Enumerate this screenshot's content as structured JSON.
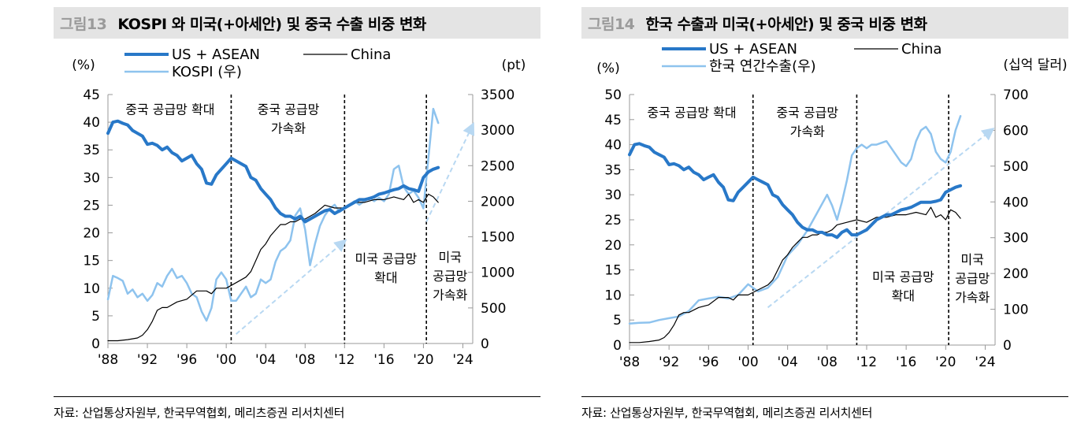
{
  "chart_data": [
    {
      "type": "line",
      "figure_number": "그림13",
      "title": "KOSPI 와 미국(+아세안) 및 중국 수출 비중 변화",
      "left_axis_label": "(%)",
      "right_axis_label": "(pt)",
      "x_ticks": [
        "'88",
        "'92",
        "'96",
        "'00",
        "'04",
        "'08",
        "'12",
        "'16",
        "'20",
        "'24"
      ],
      "xlim": [
        1988,
        2025
      ],
      "ylim_left": [
        0,
        45
      ],
      "ylim_right": [
        0,
        3500
      ],
      "y_ticks_left": [
        0,
        5,
        10,
        15,
        20,
        25,
        30,
        35,
        40,
        45
      ],
      "y_ticks_right": [
        0,
        500,
        1000,
        1500,
        2000,
        2500,
        3000,
        3500
      ],
      "series": [
        {
          "name": "US + ASEAN",
          "axis": "left",
          "color": "#2878c8",
          "width": 4,
          "x": [
            1988,
            1988.5,
            1989,
            1989.5,
            1990,
            1990.5,
            1991,
            1991.5,
            1992,
            1992.5,
            1993,
            1993.5,
            1994,
            1994.5,
            1995,
            1995.5,
            1996,
            1996.5,
            1997,
            1997.5,
            1998,
            1998.5,
            1999,
            1999.5,
            2000,
            2000.5,
            2001,
            2001.5,
            2002,
            2002.5,
            2003,
            2003.5,
            2004,
            2004.5,
            2005,
            2005.5,
            2006,
            2006.5,
            2007,
            2007.5,
            2008,
            2008.5,
            2009,
            2009.5,
            2010,
            2010.5,
            2011,
            2011.5,
            2012,
            2012.5,
            2013,
            2013.5,
            2014,
            2014.5,
            2015,
            2015.5,
            2016,
            2016.5,
            2017,
            2017.5,
            2018,
            2018.5,
            2019,
            2019.5,
            2020,
            2020.5,
            2021,
            2021.5
          ],
          "y": [
            38,
            40,
            40.2,
            39.8,
            39.5,
            38.5,
            38,
            37.5,
            36,
            36.2,
            35.8,
            35,
            35.5,
            34.5,
            34,
            33,
            33.5,
            34,
            32.5,
            31.5,
            29,
            28.8,
            30.5,
            31.5,
            32.5,
            33.5,
            33,
            32.5,
            32,
            30,
            29.5,
            28,
            27,
            26,
            24.5,
            23.5,
            23,
            23,
            22.5,
            23,
            22,
            22.5,
            23,
            23.5,
            24,
            24.2,
            23.5,
            24,
            24.5,
            25,
            25.5,
            26,
            26,
            26.2,
            26.5,
            27,
            27.2,
            27.5,
            27.8,
            28,
            28.5,
            28,
            27.8,
            27.5,
            30,
            31,
            31.5,
            31.8
          ]
        },
        {
          "name": "China",
          "axis": "left",
          "color": "#000000",
          "width": 1.2,
          "x": [
            1988,
            1989,
            1990,
            1991,
            1991.5,
            1992,
            1992.5,
            1993,
            1993.5,
            1994,
            1995,
            1996,
            1997,
            1998,
            1998.5,
            1999,
            2000,
            2001,
            2002,
            2002.5,
            2003,
            2003.5,
            2004,
            2004.5,
            2005,
            2005.5,
            2006,
            2006.5,
            2007,
            2007.5,
            2008,
            2008.5,
            2009,
            2010,
            2011,
            2012,
            2013,
            2014,
            2015,
            2016,
            2017,
            2018,
            2018.5,
            2019,
            2019.5,
            2020,
            2020.5,
            2021,
            2021.5
          ],
          "y": [
            0.5,
            0.5,
            0.7,
            1,
            1.5,
            2.5,
            4,
            6,
            6.5,
            6.5,
            7.5,
            8,
            9.5,
            9.5,
            9,
            10,
            10,
            11,
            12,
            13,
            15,
            17,
            18,
            19.5,
            20.5,
            21.5,
            21.5,
            22,
            22,
            22.5,
            22.5,
            23,
            23.5,
            25,
            24.5,
            24.5,
            25.5,
            25.5,
            26,
            26,
            26.5,
            26,
            27,
            25.5,
            26,
            25.5,
            27,
            26.5,
            25.5
          ]
        },
        {
          "name": "KOSPI (우)",
          "axis": "right",
          "color": "#8ec3ee",
          "width": 2.5,
          "x": [
            1988,
            1988.5,
            1989,
            1989.5,
            1990,
            1990.5,
            1991,
            1991.5,
            1992,
            1992.5,
            1993,
            1993.5,
            1994,
            1994.5,
            1995,
            1995.5,
            1996,
            1996.5,
            1997,
            1997.5,
            1998,
            1998.5,
            1999,
            1999.5,
            2000,
            2000.5,
            2001,
            2001.5,
            2002,
            2002.5,
            2003,
            2003.5,
            2004,
            2004.5,
            2005,
            2005.5,
            2006,
            2006.5,
            2007,
            2007.5,
            2008,
            2008.5,
            2009,
            2009.5,
            2010,
            2010.5,
            2011,
            2011.5,
            2012,
            2012.5,
            2013,
            2013.5,
            2014,
            2014.5,
            2015,
            2015.5,
            2016,
            2016.5,
            2017,
            2017.5,
            2018,
            2018.5,
            2019,
            2019.5,
            2020,
            2020.5,
            2021,
            2021.5
          ],
          "y": [
            620,
            950,
            920,
            880,
            700,
            760,
            650,
            700,
            600,
            680,
            850,
            800,
            950,
            1050,
            920,
            950,
            850,
            700,
            650,
            450,
            320,
            500,
            900,
            1000,
            900,
            600,
            600,
            700,
            800,
            650,
            700,
            900,
            850,
            900,
            1150,
            1300,
            1350,
            1450,
            1800,
            1900,
            1600,
            1100,
            1400,
            1650,
            1800,
            1900,
            1950,
            1850,
            1900,
            1950,
            2000,
            1950,
            2000,
            2050,
            2000,
            2050,
            2000,
            2100,
            2450,
            2500,
            2200,
            2100,
            2150,
            2050,
            1900,
            2600,
            3300,
            3100
          ]
        }
      ],
      "trend_arrows": [
        {
          "x": [
            2001,
            2012
          ],
          "y": [
            1.7,
            18.5
          ],
          "axis": "left"
        },
        {
          "x": [
            2020.3,
            2025
          ],
          "y": [
            22,
            39.5
          ],
          "axis": "left"
        }
      ],
      "vlines": [
        2000.5,
        2012,
        2020.3
      ],
      "annotations": [
        {
          "text": "중국 공급망 확대",
          "x": 1994.3,
          "y": 41.5,
          "lines": [
            "중국 공급망 확대"
          ]
        },
        {
          "text": "중국 공급망 가속화",
          "x": 2006.3,
          "y": 41.5,
          "lines": [
            "중국 공급망",
            "가속화"
          ]
        },
        {
          "text": "미국 공급망 확대",
          "x": 2016.2,
          "y": 14.5,
          "lines": [
            "미국 공급망",
            "확대"
          ]
        },
        {
          "text": "미국 공급망 가속화",
          "x": 2022.7,
          "y": 14.8,
          "lines": [
            "미국",
            "공급망",
            "가속화"
          ]
        }
      ],
      "source": "자료: 산업통상자원부, 한국무역협회, 메리츠증권 리서치센터"
    },
    {
      "type": "line",
      "figure_number": "그림14",
      "title": "한국 수출과 미국(+아세안) 및 중국 비중 변화",
      "left_axis_label": "(%)",
      "right_axis_label": "(십억 달러)",
      "x_ticks": [
        "'88",
        "'92",
        "'96",
        "'00",
        "'04",
        "'08",
        "'12",
        "'16",
        "'20",
        "'24"
      ],
      "xlim": [
        1988,
        2025
      ],
      "ylim_left": [
        0,
        50
      ],
      "ylim_right": [
        0,
        700
      ],
      "y_ticks_left": [
        0,
        5,
        10,
        15,
        20,
        25,
        30,
        35,
        40,
        45,
        50
      ],
      "y_ticks_right": [
        0,
        100,
        200,
        300,
        400,
        500,
        600,
        700
      ],
      "series": [
        {
          "name": "US + ASEAN",
          "axis": "left",
          "color": "#2878c8",
          "width": 4,
          "x": [
            1988,
            1988.5,
            1989,
            1989.5,
            1990,
            1990.5,
            1991,
            1991.5,
            1992,
            1992.5,
            1993,
            1993.5,
            1994,
            1994.5,
            1995,
            1995.5,
            1996,
            1996.5,
            1997,
            1997.5,
            1998,
            1998.5,
            1999,
            1999.5,
            2000,
            2000.5,
            2001,
            2001.5,
            2002,
            2002.5,
            2003,
            2003.5,
            2004,
            2004.5,
            2005,
            2005.5,
            2006,
            2006.5,
            2007,
            2007.5,
            2008,
            2008.5,
            2009,
            2009.5,
            2010,
            2010.5,
            2011,
            2011.5,
            2012,
            2012.5,
            2013,
            2013.5,
            2014,
            2014.5,
            2015,
            2015.5,
            2016,
            2016.5,
            2017,
            2017.5,
            2018,
            2018.5,
            2019,
            2019.5,
            2020,
            2020.5,
            2021,
            2021.5
          ],
          "y": [
            38,
            40,
            40.2,
            39.8,
            39.5,
            38.5,
            38,
            37.5,
            36,
            36.2,
            35.8,
            35,
            35.5,
            34.5,
            34,
            33,
            33.5,
            34,
            32.5,
            31.5,
            29,
            28.8,
            30.5,
            31.5,
            32.5,
            33.5,
            33,
            32.5,
            32,
            30,
            29.5,
            28,
            27,
            26,
            24.5,
            23.5,
            23,
            23,
            22.5,
            22.5,
            22,
            22,
            21.5,
            22.5,
            23,
            22,
            22,
            22.5,
            23,
            24,
            25,
            25.5,
            26,
            26,
            26.5,
            27,
            27.2,
            27.5,
            28,
            28.5,
            28.5,
            28.5,
            28.7,
            29,
            30.5,
            31,
            31.5,
            31.8
          ]
        },
        {
          "name": "China",
          "axis": "left",
          "color": "#000000",
          "width": 1.2,
          "x": [
            1988,
            1989,
            1990,
            1991,
            1991.5,
            1992,
            1992.5,
            1993,
            1993.5,
            1994,
            1995,
            1996,
            1997,
            1998,
            1998.5,
            1999,
            2000,
            2001,
            2002,
            2002.5,
            2003,
            2003.5,
            2004,
            2004.5,
            2005,
            2005.5,
            2006,
            2006.5,
            2007,
            2007.5,
            2008,
            2008.5,
            2009,
            2010,
            2011,
            2012,
            2013,
            2014,
            2015,
            2016,
            2017,
            2018,
            2018.5,
            2019,
            2019.5,
            2020,
            2020.5,
            2021,
            2021.5
          ],
          "y": [
            0.5,
            0.5,
            0.7,
            1,
            1.5,
            2.5,
            4,
            6,
            6.5,
            6.5,
            7.5,
            8,
            9.5,
            9.5,
            9,
            10,
            10,
            11,
            12,
            13,
            15,
            17,
            18,
            19.5,
            20.5,
            21.5,
            21.5,
            22,
            22,
            22.5,
            22.5,
            23,
            24,
            24.5,
            25,
            24.5,
            25.5,
            25.5,
            26,
            26,
            26.5,
            26,
            27.5,
            25.5,
            26,
            25,
            27,
            26.5,
            25.3
          ]
        },
        {
          "name": "한국 연간수출(우)",
          "axis": "right",
          "color": "#8ec3ee",
          "width": 2.5,
          "x": [
            1988,
            1989,
            1990,
            1991,
            1992,
            1993,
            1994,
            1995,
            1996,
            1997,
            1998,
            1999,
            2000,
            2001,
            2002,
            2003,
            2004,
            2005,
            2006,
            2007,
            2008,
            2008.5,
            2009,
            2009.5,
            2010,
            2010.5,
            2011,
            2011.5,
            2012,
            2012.5,
            2013,
            2014,
            2015,
            2015.5,
            2016,
            2016.5,
            2017,
            2017.5,
            2018,
            2018.5,
            2019,
            2019.5,
            2020,
            2020.5,
            2021,
            2021.5
          ],
          "y": [
            60,
            62,
            63,
            70,
            75,
            80,
            95,
            125,
            130,
            135,
            130,
            140,
            170,
            150,
            160,
            190,
            250,
            280,
            320,
            370,
            420,
            390,
            350,
            400,
            460,
            530,
            550,
            560,
            550,
            560,
            560,
            570,
            530,
            510,
            500,
            520,
            570,
            600,
            610,
            590,
            540,
            520,
            510,
            540,
            600,
            640
          ]
        }
      ],
      "trend_arrows": [
        {
          "x": [
            2002,
            2024.7
          ],
          "y": [
            7.5,
            43
          ],
          "axis": "left"
        }
      ],
      "vlines": [
        2000.5,
        2011,
        2020.3
      ],
      "annotations": [
        {
          "text": "중국 공급망 확대",
          "x": 1994.3,
          "y": 45.5,
          "lines": [
            "중국 공급망 확대"
          ]
        },
        {
          "text": "중국 공급망 가속화",
          "x": 2006,
          "y": 45.5,
          "lines": [
            "중국 공급망",
            "가속화"
          ]
        },
        {
          "text": "미국 공급망 확대",
          "x": 2015.7,
          "y": 12.7,
          "lines": [
            "미국 공급망",
            "확대"
          ]
        },
        {
          "text": "미국 공급망 가속화",
          "x": 2022.7,
          "y": 16.2,
          "lines": [
            "미국",
            "공급망",
            "가속화"
          ]
        }
      ],
      "source": "자료: 산업통상자원부, 한국무역협회, 메리츠증권 리서치센터"
    }
  ]
}
